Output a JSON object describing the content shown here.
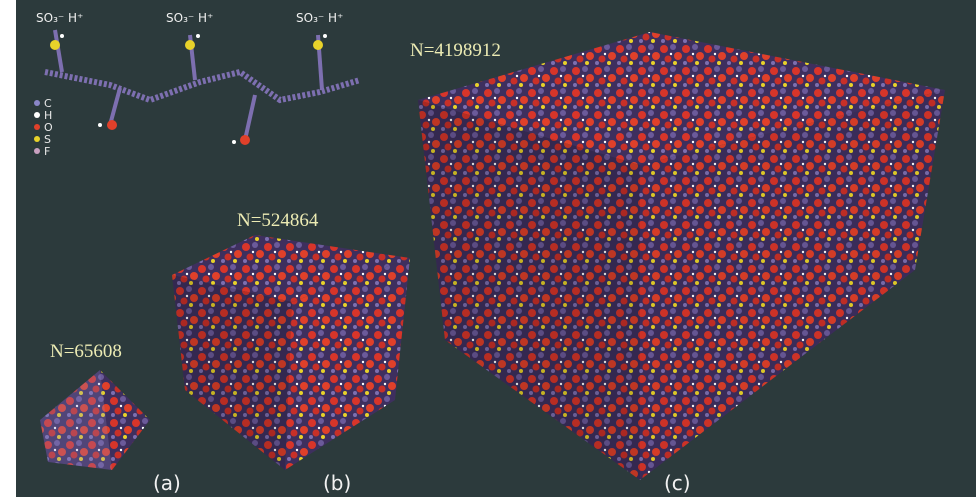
{
  "molecule": {
    "groups": [
      "SO₃⁻ H⁺",
      "SO₃⁻ H⁺",
      "SO₃⁻ H⁺"
    ],
    "legend": [
      {
        "label": "C",
        "color": "#8a86c8"
      },
      {
        "label": "H",
        "color": "#ffffff"
      },
      {
        "label": "O",
        "color": "#e0402a"
      },
      {
        "label": "S",
        "color": "#e8d22a"
      },
      {
        "label": "F",
        "color": "#c9a0c0"
      }
    ]
  },
  "panels": [
    {
      "count": "N=65608",
      "label": "(a)"
    },
    {
      "count": "N=524864",
      "label": "(b)"
    },
    {
      "count": "N=4198912",
      "label": "(c)"
    }
  ]
}
